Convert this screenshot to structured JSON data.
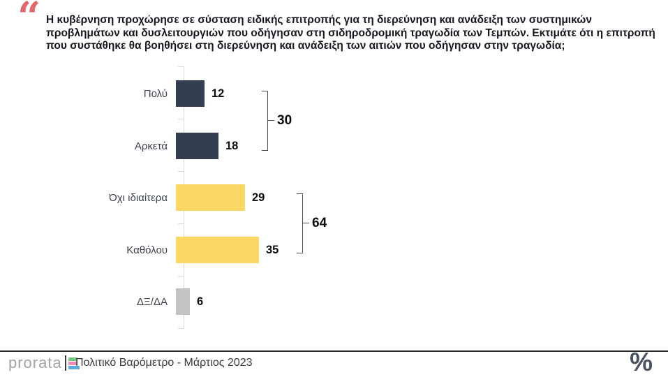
{
  "quote_mark": "“",
  "question": "Η κυβέρνηση προχώρησε σε σύσταση ειδικής επιτροπής για τη διερεύνηση και ανάδειξη των συστημικών προβλημάτων και δυσλειτουργιών που οδήγησαν στη σιδηροδρομική τραγωδία των Τεμπών. Εκτιμάτε ότι η επιτροπή που συστάθηκε θα βοηθήσει στη διερεύνηση και ανάδειξη των αιτιών που οδήγησαν στην τραγωδία;",
  "chart_data": {
    "type": "bar",
    "orientation": "horizontal",
    "title": "",
    "unit": "%",
    "categories": [
      "Πολύ",
      "Αρκετά",
      "Όχι ιδιαίτερα",
      "Καθόλου",
      "ΔΞ/ΔΑ"
    ],
    "values": [
      12,
      18,
      29,
      35,
      6
    ],
    "bar_colors": [
      "#343e50",
      "#343e50",
      "#fbd765",
      "#fbd765",
      "#c3c3c3"
    ],
    "value_labels": true,
    "grid": false,
    "legend": false,
    "xlim": [
      0,
      100
    ],
    "groups": [
      {
        "members": [
          "Πολύ",
          "Αρκετά"
        ],
        "total": 30
      },
      {
        "members": [
          "Όχι ιδιαίτερα",
          "Καθόλου"
        ],
        "total": 64
      }
    ]
  },
  "footer": {
    "logo_text": "prorata",
    "logo_colors": [
      "#7cc584",
      "#f08cb4",
      "#5aa9d8"
    ],
    "source_label": "Πολιτικό Βαρόμετρο - Μάρτιος 2023",
    "percent_mark": "%"
  },
  "colors": {
    "quote_accent": "#e0696b",
    "navy": "#343e50",
    "yellow": "#fbd765",
    "gray": "#c3c3c3"
  }
}
